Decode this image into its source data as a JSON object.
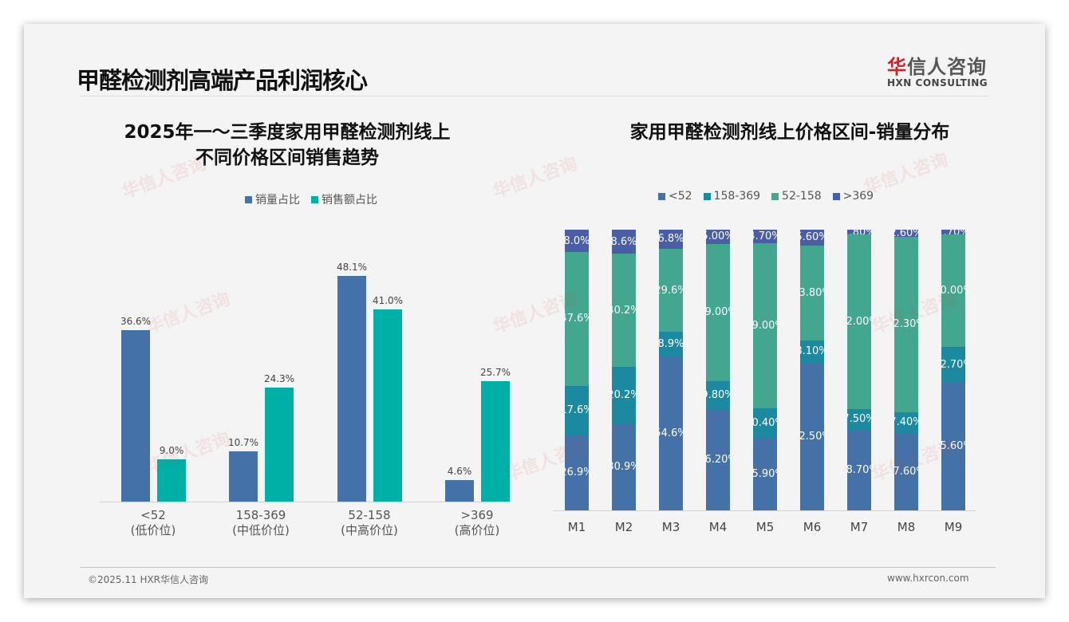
{
  "slide": {
    "title": "甲醛检测剂高端产品利润核心",
    "logo": {
      "cn_first": "华",
      "cn_rest": "信人咨询",
      "en": "HXN CONSULTING"
    },
    "footer": {
      "left": "©2025.11 HXR华信人咨询",
      "right": "www.hxrcon.com"
    },
    "watermark": "华信人咨询"
  },
  "colors": {
    "volume": "#4472a8",
    "sales": "#00afa5",
    "lt52": "#4472a8",
    "r158_369": "#1b8aa0",
    "r52_158": "#43a68e",
    "gt369": "#4a5ea8"
  },
  "chart_data": [
    {
      "type": "bar",
      "title": "2025年一～三季度家用甲醛检测剂线上\n不同价格区间销售趋势",
      "title_line1": "2025年一～三季度家用甲醛检测剂线上",
      "title_line2": "不同价格区间销售趋势",
      "categories": [
        "<52",
        "158-369",
        "52-158",
        ">369"
      ],
      "category_sub": [
        "(低价位)",
        "(中低价位)",
        "(中高价位)",
        "(高价位)"
      ],
      "series": [
        {
          "name": "销量占比",
          "values": [
            36.6,
            10.7,
            48.1,
            4.6
          ],
          "labels": [
            "36.6%",
            "10.7%",
            "48.1%",
            "4.6%"
          ]
        },
        {
          "name": "销售额占比",
          "values": [
            9.0,
            24.3,
            41.0,
            25.7
          ],
          "labels": [
            "9.0%",
            "24.3%",
            "41.0%",
            "25.7%"
          ]
        }
      ],
      "legend_position": "top",
      "grid": false
    },
    {
      "type": "bar",
      "stacked": true,
      "title": "家用甲醛检测剂线上价格区间-销量分布",
      "categories": [
        "M1",
        "M2",
        "M3",
        "M4",
        "M5",
        "M6",
        "M7",
        "M8",
        "M9"
      ],
      "legend": [
        "<52",
        "158-369",
        "52-158",
        ">369"
      ],
      "series": [
        {
          "name": "<52",
          "values": [
            26.9,
            30.9,
            54.6,
            36.2,
            25.9,
            52.5,
            28.7,
            27.6,
            45.6
          ],
          "labels": [
            "26.9%",
            "30.9%",
            "54.6%",
            "36.20%",
            "25.90%",
            "52.50%",
            "28.70%",
            "27.60%",
            "45.60%"
          ]
        },
        {
          "name": "158-369",
          "values": [
            17.6,
            20.2,
            8.9,
            9.8,
            10.4,
            8.1,
            7.5,
            7.4,
            12.7
          ],
          "labels": [
            "17.6%",
            "20.2%",
            "8.9%",
            "9.80%",
            "10.40%",
            "8.10%",
            "7.50%",
            "7.40%",
            "12.70%"
          ]
        },
        {
          "name": "52-158",
          "values": [
            47.6,
            40.2,
            29.6,
            49.0,
            59.0,
            33.8,
            62.0,
            62.3,
            40.0
          ],
          "labels": [
            "47.6%",
            "40.2%",
            "29.6%",
            "49.00%",
            "59.00%",
            "33.80%",
            "62.00%",
            "62.30%",
            "40.00%"
          ]
        },
        {
          "name": ">369",
          "values": [
            8.0,
            8.6,
            6.8,
            5.0,
            4.7,
            5.6,
            1.8,
            2.6,
            1.7
          ],
          "labels": [
            "8.0%",
            "8.6%",
            "6.8%",
            "5.00%",
            "4.70%",
            "5.60%",
            "1.80%",
            "2.60%",
            "1.70%"
          ]
        }
      ],
      "ylim": [
        0,
        100
      ],
      "legend_position": "top"
    }
  ]
}
